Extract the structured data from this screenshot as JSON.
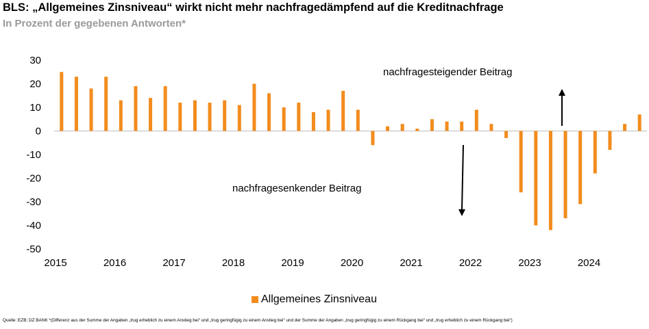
{
  "title": "BLS: „Allgemeines Zinsniveau“ wirkt nicht mehr nachfragedämpfend auf die Kreditnachfrage",
  "subtitle": "In Prozent der gegebenen Antworten*",
  "source": "Quelle: EZB; DZ BANK *(Differenz aus der Summe der Angaben „trug erheblich zu einem Anstieg bei“ und „trug geringfügig zu einem Anstieg bei“ und der Summe der Angaben „trug geringfügig zu einem Rückgang bei“ und „trug erheblich zu einem Rückgang bei“)",
  "chart_data": {
    "type": "bar",
    "series": [
      {
        "name": "Allgemeines Zinsniveau",
        "color": "#f28c1e",
        "values": [
          25,
          23,
          18,
          23,
          13,
          19,
          14,
          19,
          12,
          13,
          12,
          13,
          11,
          20,
          16,
          10,
          12,
          8,
          9,
          17,
          9,
          -6,
          2,
          3,
          1,
          5,
          4,
          4,
          9,
          3,
          -3,
          -26,
          -40,
          -42,
          -37,
          -31,
          -18,
          -8,
          3,
          7
        ]
      }
    ],
    "x_tick_labels": [
      "2015",
      "2016",
      "2017",
      "2018",
      "2019",
      "2020",
      "2021",
      "2022",
      "2023",
      "2024"
    ],
    "ylim": [
      -50,
      30
    ],
    "y_ticks": [
      30,
      20,
      10,
      0,
      -10,
      -20,
      -30,
      -40,
      -50
    ],
    "annotations": {
      "up": "nachfragesteigender Beitrag",
      "down": "nachfragesenkender Beitrag"
    },
    "legend": "bottom",
    "grid": false
  }
}
